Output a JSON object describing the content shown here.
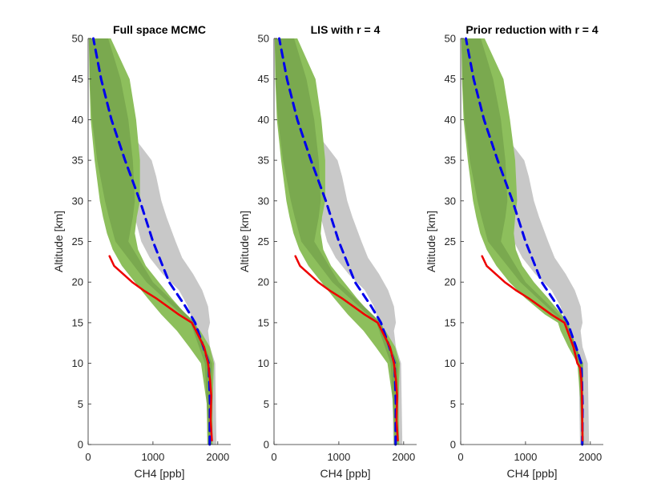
{
  "chart_data": [
    {
      "type": "line",
      "title": "Full space MCMC",
      "xlabel": "CH4 [ppb]",
      "ylabel": "Altitude [km]",
      "xlim": [
        0,
        2200
      ],
      "ylim": [
        0,
        50
      ],
      "xticks": [
        "0",
        "1000",
        "2000"
      ],
      "yticks": [
        "0",
        "5",
        "10",
        "15",
        "20",
        "25",
        "30",
        "35",
        "40",
        "45",
        "50"
      ],
      "colors": {
        "prior_band": "#c8c8c8",
        "posterior_outer": "#8dbf5c",
        "posterior_inner": "#7aa94f",
        "prior_mean": "#0000ee",
        "truth": "#ee0000"
      },
      "prior_band": {
        "altitude": [
          0,
          5,
          10,
          12,
          14,
          15,
          17,
          19,
          21,
          23,
          25,
          28,
          30,
          33,
          35,
          40,
          45,
          50
        ],
        "lower": [
          1840,
          1830,
          1820,
          1760,
          1680,
          1620,
          1540,
          1400,
          1150,
          950,
          820,
          720,
          640,
          520,
          440,
          200,
          80,
          10
        ],
        "upper": [
          1980,
          1970,
          1960,
          1880,
          1850,
          1880,
          1850,
          1760,
          1620,
          1450,
          1350,
          1210,
          1130,
          1050,
          980,
          500,
          340,
          250
        ]
      },
      "posterior_outer": {
        "altitude": [
          0,
          5,
          10,
          12,
          14,
          16,
          18,
          20,
          22,
          24,
          26,
          28,
          30,
          35,
          40,
          45,
          50
        ],
        "lower": [
          1840,
          1830,
          1740,
          1560,
          1370,
          1130,
          920,
          720,
          520,
          380,
          290,
          230,
          180,
          100,
          40,
          20,
          10
        ],
        "upper": [
          1920,
          1920,
          1940,
          1880,
          1730,
          1510,
          1290,
          1090,
          890,
          770,
          720,
          750,
          800,
          800,
          740,
          640,
          350
        ]
      },
      "posterior_inner": {
        "altitude": [
          0,
          10,
          15,
          20,
          25,
          28,
          30,
          35,
          40,
          45,
          50
        ],
        "lower": [
          1860,
          1800,
          1580,
          900,
          420,
          320,
          260,
          140,
          60,
          25,
          15
        ],
        "upper": [
          1900,
          1910,
          1650,
          1000,
          620,
          690,
          720,
          690,
          620,
          500,
          310
        ]
      },
      "prior_mean": {
        "altitude": [
          0,
          5,
          10,
          12,
          15,
          17,
          20,
          25,
          30,
          35,
          40,
          45,
          50
        ],
        "ch4": [
          1875,
          1880,
          1860,
          1780,
          1650,
          1500,
          1250,
          1000,
          800,
          570,
          360,
          200,
          80
        ]
      },
      "truth": {
        "altitude": [
          0.5,
          3,
          6,
          8,
          10,
          12,
          15,
          16,
          18,
          19,
          20,
          21,
          22,
          23.2
        ],
        "ch4": [
          1910,
          1890,
          1900,
          1880,
          1850,
          1790,
          1600,
          1400,
          1050,
          850,
          680,
          540,
          400,
          330
        ]
      }
    },
    {
      "type": "line",
      "title": "LIS with r = 4",
      "xlabel": "CH4 [ppb]",
      "ylabel": "Altitude [km]",
      "xlim": [
        0,
        2200
      ],
      "ylim": [
        0,
        50
      ],
      "xticks": [
        "0",
        "1000",
        "2000"
      ],
      "yticks": [
        "0",
        "5",
        "10",
        "15",
        "20",
        "25",
        "30",
        "35",
        "40",
        "45",
        "50"
      ],
      "colors": {
        "prior_band": "#c8c8c8",
        "posterior_outer": "#8dbf5c",
        "posterior_inner": "#7aa94f",
        "prior_mean": "#0000ee",
        "truth": "#ee0000"
      },
      "prior_band": {
        "altitude": [
          0,
          5,
          10,
          12,
          14,
          15,
          17,
          19,
          21,
          23,
          25,
          28,
          30,
          33,
          35,
          40,
          45,
          50
        ],
        "lower": [
          1840,
          1830,
          1820,
          1760,
          1680,
          1620,
          1540,
          1400,
          1150,
          950,
          820,
          720,
          640,
          520,
          440,
          200,
          80,
          10
        ],
        "upper": [
          1980,
          1970,
          1960,
          1880,
          1850,
          1880,
          1850,
          1760,
          1620,
          1450,
          1350,
          1210,
          1130,
          1050,
          980,
          500,
          340,
          250
        ]
      },
      "posterior_outer": {
        "altitude": [
          0,
          5,
          10,
          12,
          14,
          16,
          18,
          20,
          22,
          24,
          26,
          28,
          30,
          35,
          40,
          45,
          50
        ],
        "lower": [
          1850,
          1840,
          1750,
          1570,
          1380,
          1140,
          930,
          730,
          530,
          390,
          300,
          240,
          190,
          110,
          45,
          20,
          10
        ],
        "upper": [
          1930,
          1920,
          1940,
          1870,
          1720,
          1500,
          1280,
          1080,
          880,
          760,
          720,
          740,
          790,
          790,
          730,
          640,
          360
        ]
      },
      "posterior_inner": {
        "altitude": [
          0,
          10,
          15,
          20,
          25,
          28,
          30,
          35,
          40,
          45,
          50
        ],
        "lower": [
          1865,
          1800,
          1580,
          900,
          420,
          320,
          260,
          140,
          60,
          25,
          15
        ],
        "upper": [
          1905,
          1910,
          1650,
          1000,
          620,
          690,
          720,
          690,
          620,
          500,
          310
        ]
      },
      "prior_mean": {
        "altitude": [
          0,
          5,
          10,
          12,
          15,
          17,
          20,
          25,
          30,
          35,
          40,
          45,
          50
        ],
        "ch4": [
          1875,
          1880,
          1860,
          1780,
          1650,
          1500,
          1250,
          1000,
          800,
          570,
          360,
          200,
          80
        ]
      },
      "truth": {
        "altitude": [
          0.5,
          3,
          6,
          8,
          10,
          12,
          15,
          16,
          18,
          19,
          20,
          21,
          22,
          23.2
        ],
        "ch4": [
          1910,
          1890,
          1900,
          1880,
          1850,
          1790,
          1600,
          1400,
          1050,
          850,
          680,
          540,
          400,
          330
        ]
      }
    },
    {
      "type": "line",
      "title": "Prior reduction with r = 4",
      "xlabel": "CH4 [ppb]",
      "ylabel": "Altitude [km]",
      "xlim": [
        0,
        2200
      ],
      "ylim": [
        0,
        50
      ],
      "xticks": [
        "0",
        "1000",
        "2000"
      ],
      "yticks": [
        "0",
        "5",
        "10",
        "15",
        "20",
        "25",
        "30",
        "35",
        "40",
        "45",
        "50"
      ],
      "colors": {
        "prior_band": "#c8c8c8",
        "posterior_outer": "#8dbf5c",
        "posterior_inner": "#7aa94f",
        "prior_mean": "#0000ee",
        "truth": "#ee0000"
      },
      "prior_band": {
        "altitude": [
          0,
          5,
          10,
          12,
          14,
          15,
          17,
          19,
          21,
          23,
          25,
          28,
          30,
          33,
          35,
          40,
          45,
          50
        ],
        "lower": [
          1840,
          1830,
          1820,
          1760,
          1680,
          1620,
          1540,
          1400,
          1150,
          950,
          820,
          720,
          640,
          520,
          440,
          200,
          80,
          10
        ],
        "upper": [
          1980,
          1970,
          1960,
          1880,
          1850,
          1880,
          1850,
          1760,
          1620,
          1450,
          1350,
          1210,
          1130,
          1050,
          980,
          500,
          340,
          250
        ]
      },
      "posterior_outer": {
        "altitude": [
          0,
          5,
          10,
          12,
          14,
          15,
          16,
          18,
          20,
          22,
          24,
          26,
          28,
          30,
          35,
          40,
          45,
          50
        ],
        "lower": [
          1860,
          1850,
          1800,
          1660,
          1540,
          1500,
          1300,
          1000,
          750,
          550,
          400,
          300,
          240,
          190,
          110,
          45,
          20,
          10
        ],
        "upper": [
          1900,
          1890,
          1890,
          1780,
          1700,
          1660,
          1560,
          1350,
          1130,
          950,
          850,
          820,
          840,
          870,
          840,
          760,
          660,
          370
        ]
      },
      "posterior_inner": {
        "altitude": [
          0,
          10,
          15,
          20,
          25,
          28,
          30,
          35,
          40,
          45,
          50
        ],
        "lower": [
          1870,
          1820,
          1590,
          920,
          420,
          320,
          260,
          140,
          60,
          25,
          15
        ],
        "upper": [
          1895,
          1880,
          1640,
          1000,
          620,
          690,
          720,
          690,
          620,
          500,
          310
        ]
      },
      "prior_mean": {
        "altitude": [
          0,
          5,
          10,
          12,
          15,
          17,
          20,
          25,
          30,
          35,
          40,
          45,
          50
        ],
        "ch4": [
          1875,
          1880,
          1860,
          1780,
          1650,
          1500,
          1250,
          1000,
          800,
          570,
          360,
          200,
          80
        ]
      },
      "truth": {
        "altitude": [
          0.5,
          3,
          6,
          8,
          9.5,
          10,
          12,
          15,
          16,
          18,
          19,
          20,
          21,
          22,
          23.2
        ],
        "ch4": [
          1880,
          1875,
          1870,
          1860,
          1840,
          1800,
          1740,
          1600,
          1400,
          1050,
          850,
          680,
          540,
          400,
          330
        ]
      }
    }
  ]
}
